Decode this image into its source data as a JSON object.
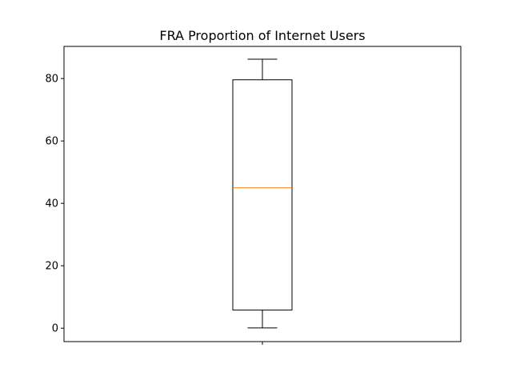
{
  "chart_data": {
    "type": "box",
    "title": "FRA Proportion of Internet Users",
    "xlabel": "",
    "ylabel": "",
    "ylim": [
      -4.3,
      90.3
    ],
    "yticks": [
      0,
      20,
      40,
      60,
      80
    ],
    "ytick_labels": [
      "0",
      "20",
      "40",
      "60",
      "80"
    ],
    "xtick_labels": [
      ""
    ],
    "grid": false,
    "legend": "none",
    "boxes": [
      {
        "whisker_low": 0.1,
        "q1": 5.8,
        "median": 45.0,
        "q3": 79.6,
        "whisker_high": 86.2
      }
    ],
    "colors": {
      "box": "#000000",
      "median": "#ff7f0e"
    }
  }
}
